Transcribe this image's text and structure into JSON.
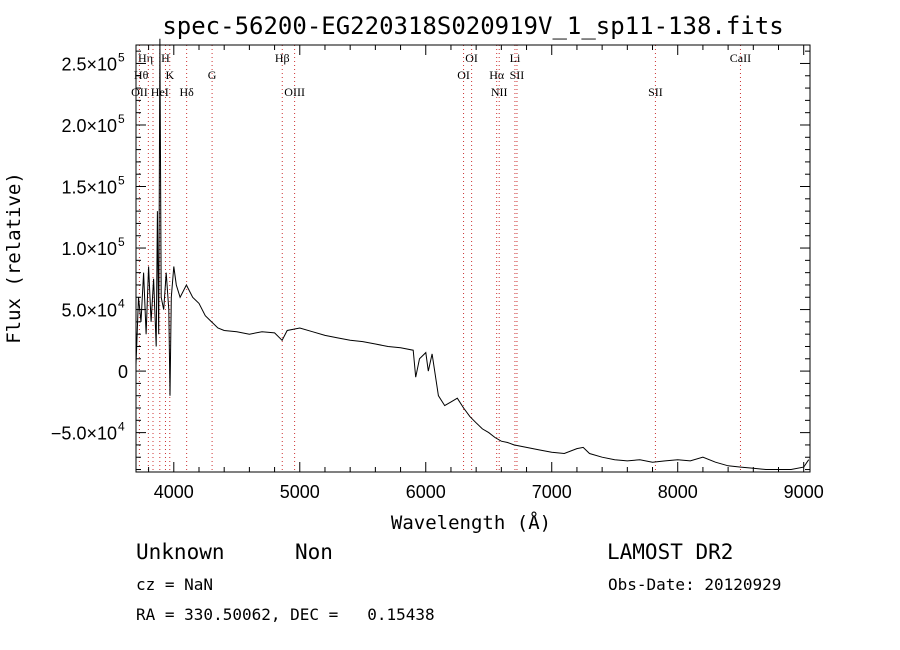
{
  "chart_data": {
    "type": "line",
    "title": "spec-56200-EG220318S020919V_1_sp11-138.fits",
    "xlabel": "Wavelength (Å)",
    "ylabel": "Flux (relative)",
    "xlim": [
      3700,
      9050
    ],
    "ylim": [
      -82000,
      265000
    ],
    "x_ticks": [
      4000,
      5000,
      6000,
      7000,
      8000,
      9000
    ],
    "y_ticks": [
      {
        "value": 250000,
        "label": "2.5×10",
        "exp": "5"
      },
      {
        "value": 200000,
        "label": "2.0×10",
        "exp": "5"
      },
      {
        "value": 150000,
        "label": "1.5×10",
        "exp": "5"
      },
      {
        "value": 100000,
        "label": "1.0×10",
        "exp": "5"
      },
      {
        "value": 50000,
        "label": "5.0×10",
        "exp": "4"
      },
      {
        "value": 0,
        "label": "0",
        "exp": ""
      },
      {
        "value": -50000,
        "label": "−5.0×10",
        "exp": "4"
      }
    ],
    "grid": false,
    "series": [
      {
        "x": [
          3700,
          3720,
          3740,
          3760,
          3780,
          3800,
          3820,
          3840,
          3860,
          3870,
          3880,
          3890,
          3900,
          3920,
          3940,
          3960,
          3970,
          3980,
          4000,
          4020,
          4050,
          4100,
          4150,
          4200,
          4250,
          4300,
          4350,
          4400,
          4500,
          4600,
          4700,
          4800,
          4860,
          4900,
          5000,
          5100,
          5200,
          5300,
          5400,
          5500,
          5600,
          5700,
          5800,
          5900,
          5920,
          5950,
          6000,
          6020,
          6050,
          6100,
          6150,
          6200,
          6250,
          6300,
          6350,
          6400,
          6450,
          6500,
          6550,
          6600,
          6650,
          6700,
          6800,
          6900,
          7000,
          7100,
          7200,
          7250,
          7300,
          7400,
          7500,
          7600,
          7700,
          7800,
          7900,
          8000,
          8100,
          8200,
          8300,
          8400,
          8500,
          8600,
          8700,
          8800,
          8900,
          9000,
          9040
        ],
        "y": [
          5000,
          60000,
          40000,
          80000,
          30000,
          85000,
          40000,
          75000,
          20000,
          130000,
          30000,
          270000,
          60000,
          50000,
          80000,
          50000,
          -20000,
          60000,
          85000,
          70000,
          60000,
          70000,
          60000,
          55000,
          45000,
          40000,
          35000,
          33000,
          32000,
          30000,
          32000,
          31000,
          25000,
          33000,
          35000,
          32000,
          29000,
          27000,
          25000,
          24000,
          22000,
          20000,
          19000,
          17000,
          -5000,
          10000,
          15000,
          0,
          14000,
          -20000,
          -28000,
          -25000,
          -22000,
          -30000,
          -37000,
          -42000,
          -47000,
          -50000,
          -54000,
          -57000,
          -58000,
          -60000,
          -62000,
          -64000,
          -66000,
          -67000,
          -63000,
          -62000,
          -67000,
          -70000,
          -72000,
          -73000,
          -72000,
          -74000,
          -73000,
          -72000,
          -73000,
          -70000,
          -74000,
          -77000,
          -78000,
          -79000,
          -80000,
          -80000,
          -80000,
          -78000,
          -72000
        ]
      }
    ],
    "spectral_lines": [
      {
        "label": "Hη",
        "x": 3835,
        "row": 1,
        "align": "end"
      },
      {
        "label": "H",
        "x": 3968,
        "row": 1,
        "align": "end"
      },
      {
        "label": "Hθ",
        "x": 3798,
        "row": 2,
        "align": "end"
      },
      {
        "label": "K",
        "x": 3934,
        "row": 2,
        "align": "start"
      },
      {
        "label": "G",
        "x": 4304,
        "row": 2,
        "align": "middle"
      },
      {
        "label": "OII",
        "x": 3727,
        "row": 3,
        "align": "middle"
      },
      {
        "label": "HeI",
        "x": 3889,
        "row": 3,
        "align": "middle"
      },
      {
        "label": "Hδ",
        "x": 4102,
        "row": 3,
        "align": "middle"
      },
      {
        "label": "Hβ",
        "x": 4861,
        "row": 1,
        "align": "middle"
      },
      {
        "label": "OIII",
        "x": 4959,
        "row": 3,
        "align": "middle"
      },
      {
        "label": "OI",
        "x": 6300,
        "row": 2,
        "align": "middle"
      },
      {
        "label": "OI",
        "x": 6364,
        "row": 1,
        "align": "middle"
      },
      {
        "label": "Hα",
        "x": 6563,
        "row": 2,
        "align": "middle"
      },
      {
        "label": "NII",
        "x": 6583,
        "row": 3,
        "align": "middle"
      },
      {
        "label": "Li",
        "x": 6708,
        "row": 1,
        "align": "middle"
      },
      {
        "label": "SII",
        "x": 6724,
        "row": 2,
        "align": "middle"
      },
      {
        "label": "SII",
        "x": 7823,
        "row": 3,
        "align": "middle"
      },
      {
        "label": "CaII",
        "x": 8498,
        "row": 1,
        "align": "middle"
      }
    ]
  },
  "info": {
    "class": "Unknown",
    "subclass": "Non",
    "survey": "LAMOST DR2",
    "cz": "cz = NaN",
    "obs_date": "Obs-Date: 20120929",
    "coords": "RA = 330.50062, DEC =   0.15438"
  }
}
